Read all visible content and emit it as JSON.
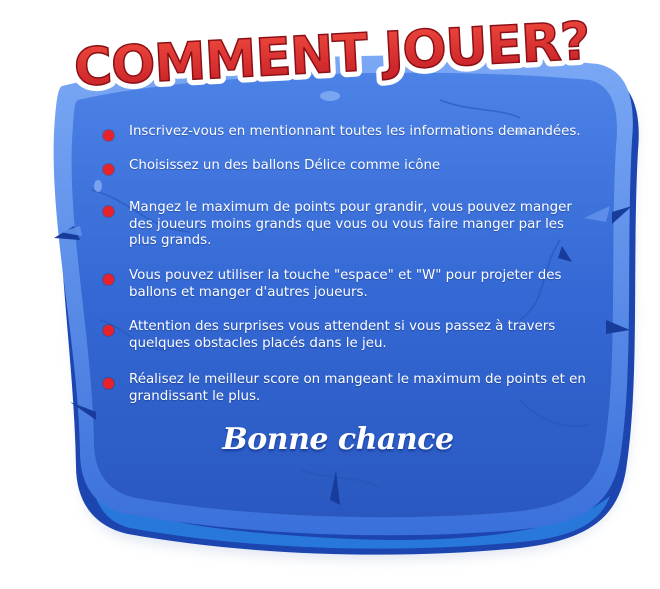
{
  "title": "COMMENT JOUER?",
  "rules": [
    "Inscrivez-vous en mentionnant toutes les informations demandées.",
    "Choisissez un des ballons Délice comme icône",
    "Mangez le maximum de points pour grandir, vous pouvez manger des joueurs moins grands que vous ou vous faire manger par les plus grands.",
    "Vous pouvez utiliser la touche \"espace\" et \"W\" pour projeter des ballons et manger d'autres joueurs.",
    "Attention des surprises vous attendent si vous passez à travers quelques obstacles placés dans le jeu.",
    "Réalisez le meilleur score on mangeant le maximum de points et en grandissant le plus."
  ],
  "closing": "Bonne chance",
  "colors": {
    "panel_main": "#2f63cf",
    "panel_dark": "#1a3f9e",
    "panel_light": "#5c8df0",
    "title_fill": "#d9262c",
    "title_outline": "#ffffff",
    "bullet": "#e8222a",
    "text": "#ffffff"
  }
}
